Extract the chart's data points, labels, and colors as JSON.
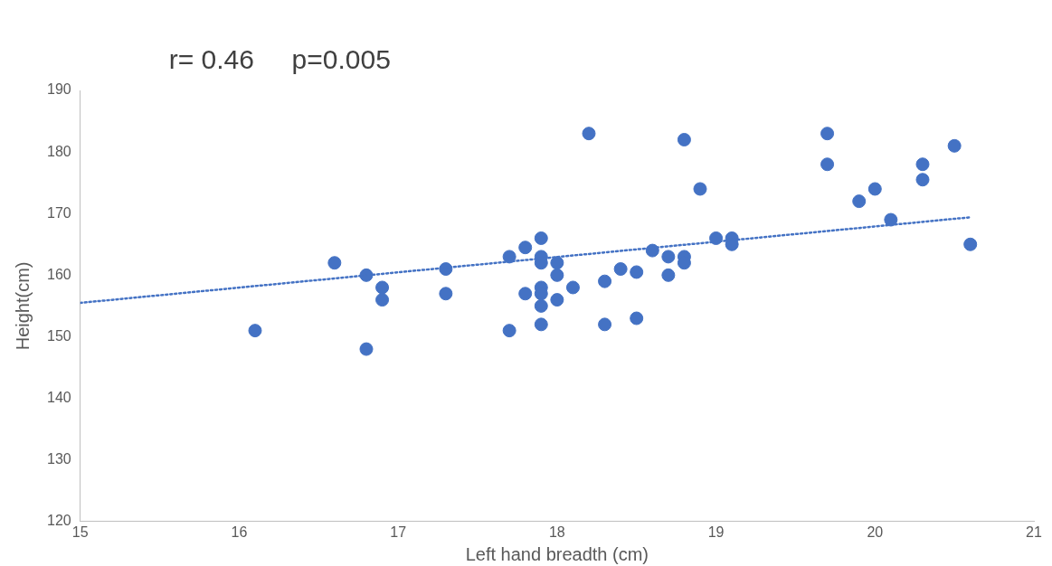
{
  "chart_data": {
    "type": "scatter",
    "title": "r= 0.46     p=0.005",
    "xlabel": "Left hand breadth (cm)",
    "ylabel": "Height(cm)",
    "xlim": [
      15,
      21
    ],
    "xticks": [
      15,
      16,
      17,
      18,
      19,
      20,
      21
    ],
    "ylim": [
      120,
      190
    ],
    "yticks": [
      120,
      130,
      140,
      150,
      160,
      170,
      180,
      190
    ],
    "grid": false,
    "legend": false,
    "marker": "circle",
    "series": [
      {
        "color": "#4472c4",
        "x": [
          16.1,
          16.6,
          16.8,
          16.8,
          16.9,
          16.9,
          17.3,
          17.3,
          17.7,
          17.7,
          17.8,
          17.8,
          17.9,
          17.9,
          17.9,
          17.9,
          17.9,
          17.9,
          17.9,
          18.0,
          18.0,
          18.0,
          18.1,
          18.2,
          18.3,
          18.3,
          18.4,
          18.5,
          18.5,
          18.6,
          18.7,
          18.7,
          18.8,
          18.8,
          18.8,
          18.9,
          19.0,
          19.1,
          19.1,
          19.7,
          19.7,
          19.9,
          20.0,
          20.1,
          20.3,
          20.3,
          20.5,
          20.6
        ],
        "values": [
          151,
          162,
          160,
          148,
          158,
          156,
          161,
          157,
          163,
          151,
          164.5,
          157,
          166,
          163,
          162,
          158,
          157,
          155,
          152,
          162,
          160,
          156,
          158,
          183,
          159,
          152,
          161,
          160.5,
          153,
          164,
          163,
          160,
          182,
          163,
          162,
          174,
          166,
          166,
          165,
          183,
          178,
          172,
          174,
          169,
          178,
          175.5,
          181,
          165
        ]
      },
      {
        "type": "line",
        "color": "#4472c4",
        "line_style": "dotted",
        "marker": "none",
        "x": [
          15,
          20.6
        ],
        "values": [
          155.5,
          169.4
        ]
      }
    ]
  }
}
